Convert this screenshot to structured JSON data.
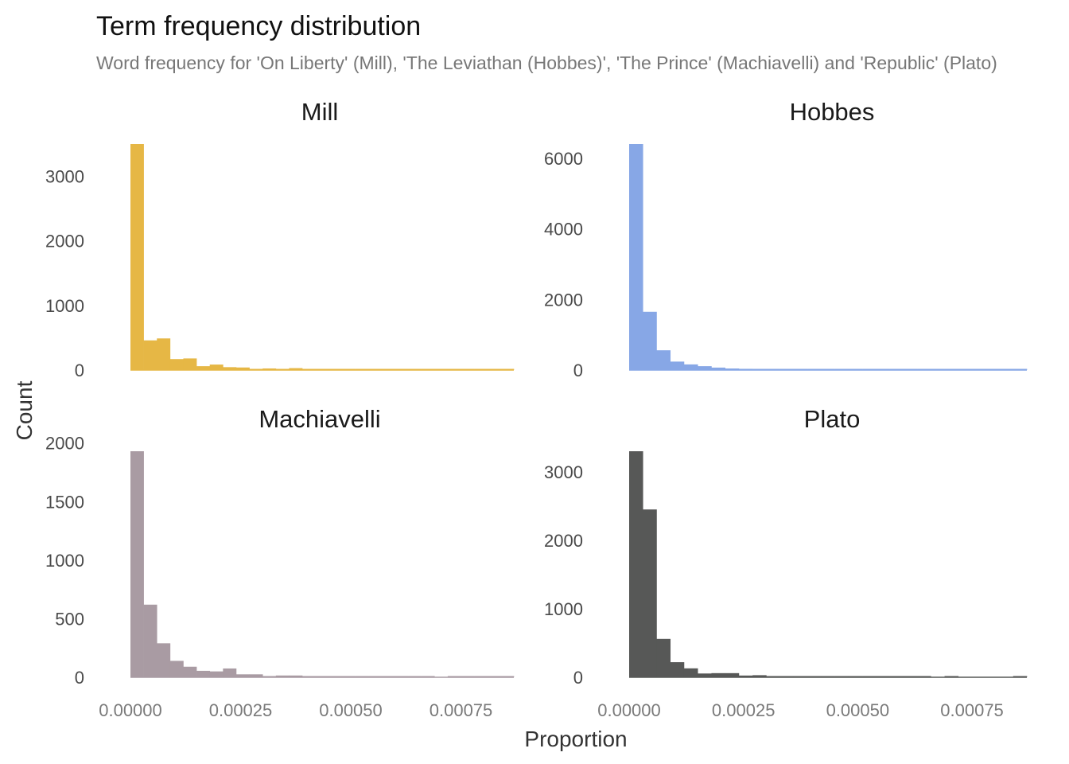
{
  "chart_data": {
    "type": "bar",
    "title": "Term frequency distribution",
    "subtitle": "Word frequency for 'On Liberty' (Mill), 'The Leviathan (Hobbes)', 'The Prince' (Machiavelli) and 'Republic' (Plato)",
    "xlabel": "Proportion",
    "ylabel": "Count",
    "bin_width": 3e-05,
    "xlim": [
      0,
      0.00087
    ],
    "x_ticks": [
      0,
      0.00025,
      0.0005,
      0.00075
    ],
    "x_tick_labels": [
      "0.00000",
      "0.00025",
      "0.00050",
      "0.00075"
    ],
    "grid": false,
    "facets": [
      {
        "name": "Mill",
        "color": "#E6B745",
        "ylim": [
          0,
          3500
        ],
        "y_ticks": [
          0,
          1000,
          2000,
          3000
        ],
        "values": [
          3500,
          460,
          490,
          170,
          180,
          60,
          85,
          45,
          40,
          15,
          25,
          10,
          30,
          5,
          15,
          15,
          10,
          10,
          5,
          5,
          5,
          5,
          5,
          5,
          5,
          5,
          5,
          5,
          5
        ]
      },
      {
        "name": "Hobbes",
        "color": "#87A7E6",
        "ylim": [
          0,
          6400
        ],
        "y_ticks": [
          0,
          2000,
          4000,
          6000
        ],
        "values": [
          6400,
          1650,
          560,
          240,
          160,
          110,
          70,
          45,
          35,
          30,
          10,
          20,
          10,
          5,
          5,
          5,
          5,
          5,
          5,
          5,
          5,
          5,
          5,
          5,
          5,
          5,
          5,
          5,
          5
        ]
      },
      {
        "name": "Machiavelli",
        "color": "#A99BA3",
        "ylim": [
          0,
          1930
        ],
        "y_ticks": [
          0,
          500,
          1000,
          1500,
          2000
        ],
        "values": [
          1930,
          620,
          290,
          140,
          90,
          55,
          50,
          75,
          25,
          25,
          10,
          15,
          15,
          5,
          5,
          5,
          5,
          3,
          3,
          3,
          3,
          3,
          3,
          0,
          3,
          3,
          3,
          3,
          3
        ]
      },
      {
        "name": "Plato",
        "color": "#575857",
        "ylim": [
          0,
          3300
        ],
        "y_ticks": [
          0,
          1000,
          2000,
          3000
        ],
        "values": [
          3300,
          2450,
          560,
          220,
          130,
          55,
          60,
          60,
          25,
          30,
          15,
          15,
          15,
          8,
          8,
          8,
          8,
          8,
          8,
          8,
          8,
          8,
          0,
          8,
          0,
          0,
          0,
          0,
          8
        ]
      }
    ]
  }
}
